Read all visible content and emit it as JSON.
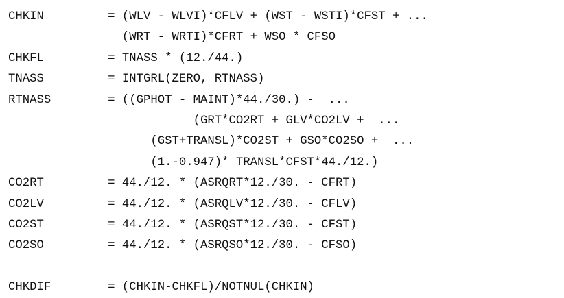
{
  "lines": [
    "CHKIN         = (WLV - WLVI)*CFLV + (WST - WSTI)*CFST + ...",
    "                (WRT - WRTI)*CFRT + WSO * CFSO",
    "CHKFL         = TNASS * (12./44.)",
    "TNASS         = INTGRL(ZERO, RTNASS)",
    "RTNASS        = ((GPHOT - MAINT)*44./30.) -  ...",
    "                          (GRT*CO2RT + GLV*CO2LV +  ...",
    "                    (GST+TRANSL)*CO2ST + GSO*CO2SO +  ...",
    "                    (1.-0.947)* TRANSL*CFST*44./12.)",
    "CO2RT         = 44./12. * (ASRQRT*12./30. - CFRT)",
    "CO2LV         = 44./12. * (ASRQLV*12./30. - CFLV)",
    "CO2ST         = 44./12. * (ASRQST*12./30. - CFST)",
    "CO2SO         = 44./12. * (ASRQSO*12./30. - CFSO)",
    "",
    "CHKDIF        = (CHKIN-CHKFL)/NOTNUL(CHKIN)"
  ]
}
